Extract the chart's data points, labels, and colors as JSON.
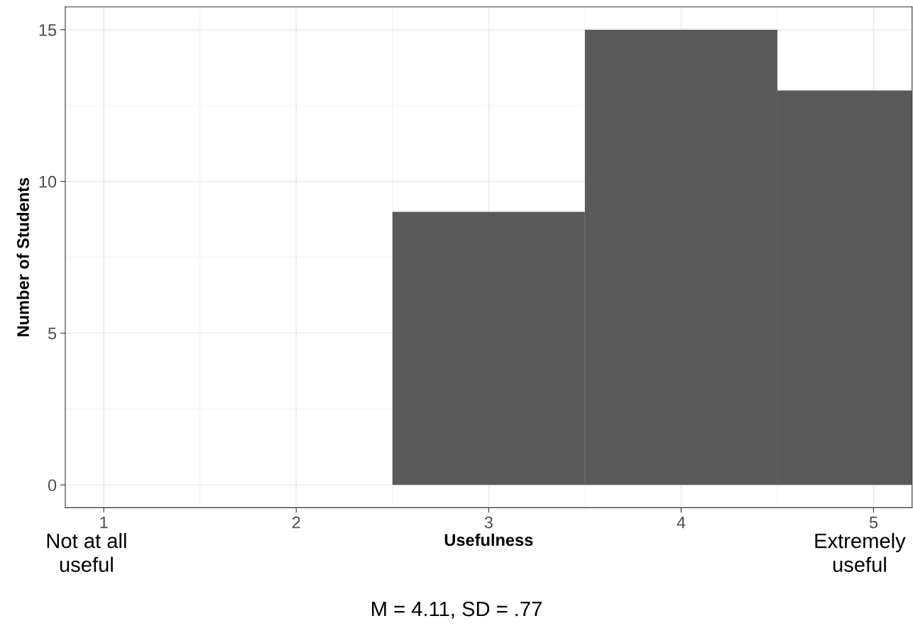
{
  "chart_data": {
    "type": "bar",
    "x": [
      3,
      4,
      5
    ],
    "values": [
      9,
      15,
      13
    ],
    "color": "#595959",
    "xlabel": "Usefulness",
    "ylabel": "Number of Students",
    "xlim": [
      0.8,
      5.2
    ],
    "xticks": [
      1,
      2,
      3,
      4,
      5
    ],
    "ylim": [
      -0.75,
      15.75
    ],
    "yticks": [
      0,
      5,
      10,
      15
    ],
    "grid": true,
    "annotations": [
      "Not at all\nuseful",
      "Extremely\nuseful",
      "M = 4.11, SD = .77"
    ]
  }
}
